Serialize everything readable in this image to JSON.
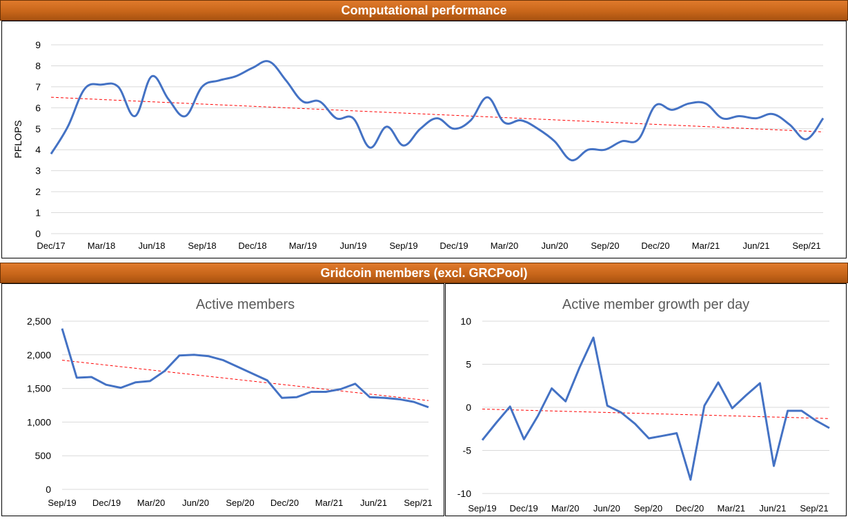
{
  "header1": "Computational performance",
  "header2": "Gridcoin members (excl. GRCPool)",
  "colors": {
    "series": "#4472c4",
    "trend": "#ff0000",
    "grid": "#d9d9d9",
    "banner": "#c8661a"
  },
  "chart_data": [
    {
      "type": "line",
      "title": "",
      "ylabel": "PFLOPS",
      "xlabel": "",
      "ylim": [
        0,
        9
      ],
      "yticks": [
        "0",
        "1",
        "2",
        "3",
        "4",
        "5",
        "6",
        "7",
        "8",
        "9"
      ],
      "xticklabels": [
        "Dec/17",
        "Mar/18",
        "Jun/18",
        "Sep/18",
        "Dec/18",
        "Mar/19",
        "Jun/19",
        "Sep/19",
        "Dec/19",
        "Mar/20",
        "Jun/20",
        "Sep/20",
        "Dec/20",
        "Mar/21",
        "Jun/21",
        "Sep/21"
      ],
      "grid": true,
      "smooth": true,
      "series": [
        {
          "values": [
            3.8,
            5.1,
            6.9,
            7.1,
            7.0,
            5.6,
            7.5,
            6.4,
            5.6,
            7.0,
            7.3,
            7.5,
            7.9,
            8.2,
            7.3,
            6.3,
            6.3,
            5.5,
            5.5,
            4.1,
            5.1,
            4.2,
            5.0,
            5.5,
            5.0,
            5.4,
            6.5,
            5.3,
            5.4,
            5.0,
            4.4,
            3.5,
            4.0,
            4.0,
            4.4,
            4.5,
            6.1,
            5.9,
            6.2,
            6.2,
            5.5,
            5.6,
            5.5,
            5.7,
            5.2,
            4.5,
            5.5
          ]
        }
      ],
      "trendline": [
        6.5,
        4.85
      ]
    },
    {
      "type": "line",
      "title": "Active members",
      "xlabel": "",
      "ylabel": "",
      "ylim": [
        0,
        2500
      ],
      "yticks": [
        "0",
        "500",
        "1,000",
        "1,500",
        "2,000",
        "2,500"
      ],
      "xticklabels": [
        "Sep/19",
        "Dec/19",
        "Mar/20",
        "Jun/20",
        "Sep/20",
        "Dec/20",
        "Mar/21",
        "Jun/21",
        "Sep/21"
      ],
      "grid": true,
      "smooth": false,
      "series": [
        {
          "values": [
            2390,
            1660,
            1670,
            1555,
            1510,
            1590,
            1610,
            1760,
            1990,
            2000,
            1980,
            1920,
            1820,
            1720,
            1620,
            1360,
            1370,
            1450,
            1450,
            1490,
            1570,
            1370,
            1360,
            1340,
            1300,
            1220
          ]
        }
      ],
      "trendline": [
        1920,
        1320
      ]
    },
    {
      "type": "line",
      "title": "Active member growth per day",
      "xlabel": "",
      "ylabel": "",
      "ylim": [
        -10,
        10
      ],
      "yticks": [
        "-10",
        "-5",
        "0",
        "5",
        "10"
      ],
      "xticklabels": [
        "Sep/19",
        "Dec/19",
        "Mar/20",
        "Jun/20",
        "Sep/20",
        "Dec/20",
        "Mar/21",
        "Jun/21",
        "Sep/21"
      ],
      "grid": true,
      "smooth": false,
      "series": [
        {
          "values": [
            -3.8,
            -1.8,
            0.1,
            -3.7,
            -1.0,
            2.2,
            0.7,
            4.6,
            8.1,
            0.2,
            -0.6,
            -1.9,
            -3.6,
            -3.3,
            -3.0,
            -8.4,
            0.2,
            2.9,
            -0.1,
            1.4,
            2.8,
            -6.8,
            -0.4,
            -0.4,
            -1.5,
            -2.4
          ]
        }
      ],
      "trendline": [
        -0.2,
        -1.3
      ]
    }
  ]
}
